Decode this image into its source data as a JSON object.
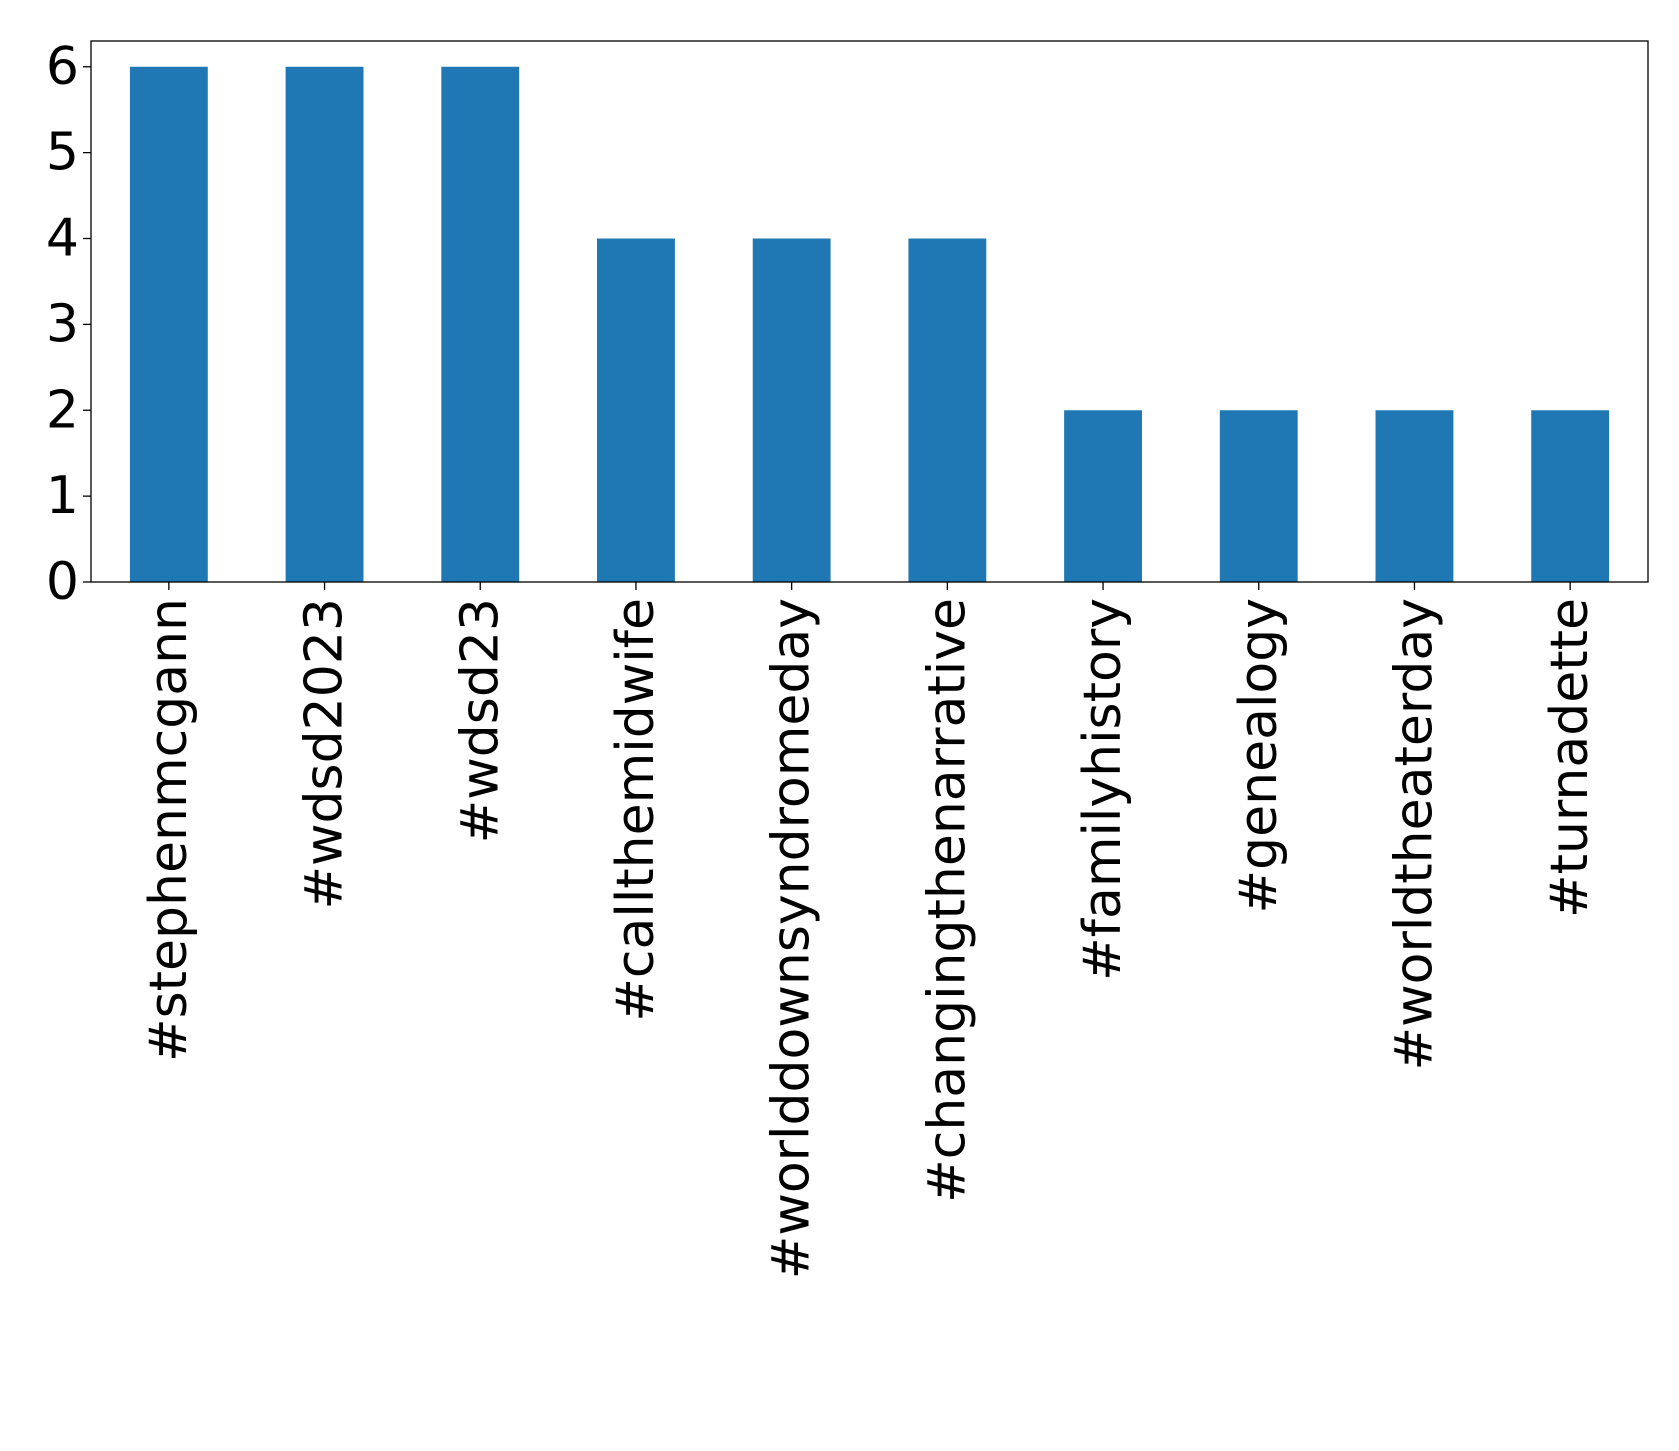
{
  "chart_data": {
    "type": "bar",
    "title": "",
    "xlabel": "",
    "ylabel": "",
    "categories": [
      "#stephenmcgann",
      "#wdsd2023",
      "#wdsd23",
      "#callthemidwife",
      "#worlddownsyndromeday",
      "#changingthenarrative",
      "#familyhistory",
      "#genealogy",
      "#worldtheaterday",
      "#turnadette"
    ],
    "values": [
      6,
      6,
      6,
      4,
      4,
      4,
      2,
      2,
      2,
      2
    ],
    "ylim": [
      0,
      6.3
    ],
    "yticks": [
      0,
      1,
      2,
      3,
      4,
      5,
      6
    ],
    "grid": false,
    "legend": "none",
    "colors": {
      "bar": "#1f77b4",
      "axis": "#000000",
      "background": "#ffffff"
    }
  }
}
